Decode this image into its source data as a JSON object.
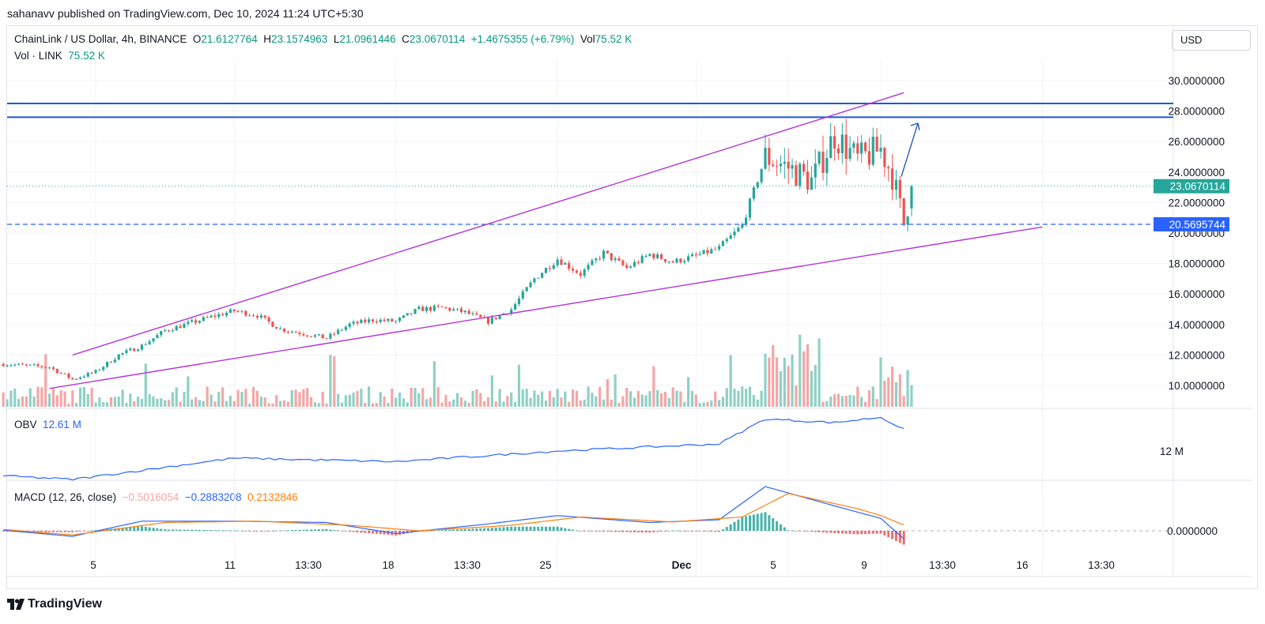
{
  "publish_line": "sahanavv published on TradingView.com, Dec 10, 2024 11:24 UTC+5:30",
  "currency": "USD",
  "brand": "TradingView",
  "legend": {
    "symbol": "ChainLink / US Dollar, 4h, BINANCE",
    "o_label": "O",
    "o_value": "21.6127764",
    "h_label": "H",
    "h_value": "23.1574963",
    "l_label": "L",
    "l_value": "21.0961446",
    "c_label": "C",
    "c_value": "23.0670114",
    "change": "+1.4675355 (+6.79%)",
    "vol_label": "Vol",
    "vol_value": "75.52 K",
    "vol2_label": "Vol · LINK",
    "vol2_value": "75.52 K"
  },
  "obv": {
    "label": "OBV",
    "value": "12.61 M",
    "axis_label": "12 M"
  },
  "macd": {
    "label": "MACD (12, 26, close)",
    "hist_value": "−0.5016054",
    "macd_value": "−0.2883208",
    "signal_value": "0.2132846",
    "axis_label": "0.0000000"
  },
  "colors": {
    "up": "#26a69a",
    "down": "#ef5350",
    "up_vol": "#8fd0c5",
    "down_vol": "#f4a6a6",
    "wedge": "#b434d6",
    "resistance": "#1f56d6",
    "support_dashed": "#2962ff",
    "obv_line": "#2962ff",
    "macd_line": "#2962ff",
    "signal_line": "#ff7f0e"
  },
  "chart_data": {
    "type": "candlestick",
    "ylim": [
      9.1,
      31.0
    ],
    "y_ticks": [
      "10.0000000",
      "12.0000000",
      "14.0000000",
      "16.0000000",
      "18.0000000",
      "20.0000000",
      "22.0000000",
      "24.0000000",
      "26.0000000",
      "28.0000000",
      "30.0000000"
    ],
    "x_ticks": [
      "5",
      "11",
      "13:30",
      "18",
      "13:30",
      "25",
      "Dec",
      "5",
      "13:30",
      "9",
      "13:30",
      "16",
      "13:30"
    ],
    "current_price": "23.0670114",
    "support_price": "20.5695744",
    "resistance_levels": [
      27.6,
      28.5
    ],
    "support_level": 20.57,
    "wedge_upper_line": {
      "from": [
        "Nov 4",
        12.0
      ],
      "to": [
        "Dec 10",
        29.2
      ]
    },
    "wedge_lower_line": {
      "from": [
        "Nov 3",
        9.8
      ],
      "to": [
        "Dec 16",
        20.4
      ]
    },
    "close_path": [
      [
        "Nov 1",
        11.4
      ],
      [
        "Nov 3",
        11.2
      ],
      [
        "Nov 4",
        10.4
      ],
      [
        "Nov 5",
        10.9
      ],
      [
        "Nov 6",
        12.0
      ],
      [
        "Nov 7",
        12.6
      ],
      [
        "Nov 8",
        13.6
      ],
      [
        "Nov 10",
        14.5
      ],
      [
        "Nov 11",
        14.9
      ],
      [
        "Nov 12",
        14.6
      ],
      [
        "Nov 13",
        13.7
      ],
      [
        "Nov 14",
        13.4
      ],
      [
        "Nov 15",
        13.1
      ],
      [
        "Nov 16",
        14.0
      ],
      [
        "Nov 17",
        14.3
      ],
      [
        "Nov 18",
        14.2
      ],
      [
        "Nov 19",
        15.0
      ],
      [
        "Nov 20",
        15.1
      ],
      [
        "Nov 21",
        14.8
      ],
      [
        "Nov 22",
        14.2
      ],
      [
        "Nov 23",
        15.0
      ],
      [
        "Nov 24",
        17.0
      ],
      [
        "Nov 25",
        18.3
      ],
      [
        "Nov 26",
        17.3
      ],
      [
        "Nov 27",
        18.7
      ],
      [
        "Nov 28",
        17.7
      ],
      [
        "Nov 29",
        18.6
      ],
      [
        "Nov 30",
        18.1
      ],
      [
        "Dec 1",
        18.5
      ],
      [
        "Dec 2",
        19.0
      ],
      [
        "Dec 3",
        20.5
      ],
      [
        "Dec 4",
        25.0
      ],
      [
        "Dec 5",
        24.3
      ],
      [
        "Dec 6",
        23.4
      ],
      [
        "Dec 7",
        26.4
      ],
      [
        "Dec 8",
        24.8
      ],
      [
        "Dec 9",
        25.5
      ],
      [
        "Dec 9 12:00",
        23.8
      ],
      [
        "Dec 10 00:00",
        20.6
      ],
      [
        "Dec 10 08:00",
        23.07
      ]
    ],
    "obv_path": [
      [
        "Nov 1",
        11.3
      ],
      [
        "Nov 4",
        11.2
      ],
      [
        "Nov 11",
        11.8
      ],
      [
        "Nov 18",
        11.7
      ],
      [
        "Nov 25",
        12.0
      ],
      [
        "Dec 2",
        12.2
      ],
      [
        "Dec 4",
        12.9
      ],
      [
        "Dec 7",
        12.8
      ],
      [
        "Dec 9",
        12.95
      ],
      [
        "Dec 10",
        12.61
      ]
    ],
    "macd_path": [
      [
        "Nov 1",
        0.02
      ],
      [
        "Nov 4",
        -0.2
      ],
      [
        "Nov 7",
        0.35
      ],
      [
        "Nov 11",
        0.35
      ],
      [
        "Nov 15",
        0.3
      ],
      [
        "Nov 18",
        -0.1
      ],
      [
        "Nov 22",
        0.25
      ],
      [
        "Nov 25",
        0.55
      ],
      [
        "Nov 29",
        0.3
      ],
      [
        "Dec 2",
        0.4
      ],
      [
        "Dec 4",
        1.6
      ],
      [
        "Dec 7",
        0.9
      ],
      [
        "Dec 9",
        0.45
      ],
      [
        "Dec 10",
        -0.29
      ]
    ],
    "signal_path": [
      [
        "Nov 1",
        0.05
      ],
      [
        "Nov 4",
        -0.15
      ],
      [
        "Nov 8",
        0.3
      ],
      [
        "Nov 12",
        0.35
      ],
      [
        "Nov 16",
        0.2
      ],
      [
        "Nov 19",
        0.0
      ],
      [
        "Nov 23",
        0.2
      ],
      [
        "Nov 26",
        0.5
      ],
      [
        "Nov 30",
        0.32
      ],
      [
        "Dec 3",
        0.5
      ],
      [
        "Dec 5",
        1.35
      ],
      [
        "Dec 8",
        0.8
      ],
      [
        "Dec 9",
        0.55
      ],
      [
        "Dec 10",
        0.21
      ]
    ]
  }
}
